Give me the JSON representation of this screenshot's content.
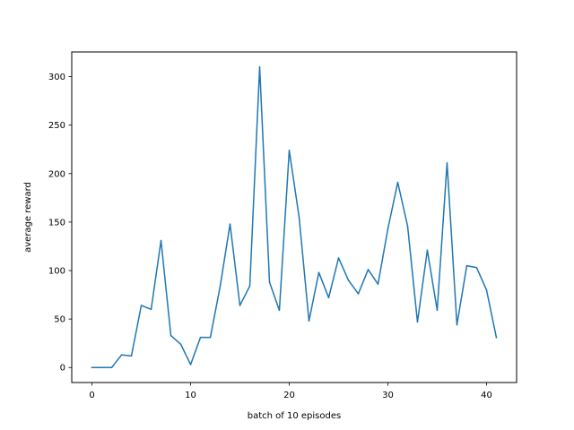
{
  "chart_data": {
    "type": "line",
    "title": "",
    "xlabel": "batch of 10 episodes",
    "ylabel": "average reward",
    "xlim": [
      -2.05,
      43.05
    ],
    "ylim": [
      -15.5,
      325.5
    ],
    "xticks": [
      0,
      10,
      20,
      30,
      40
    ],
    "yticks": [
      0,
      50,
      100,
      150,
      200,
      250,
      300
    ],
    "grid": false,
    "legend": "none",
    "series": [
      {
        "color": "#1f77b4",
        "x": [
          0,
          1,
          2,
          3,
          4,
          5,
          6,
          7,
          8,
          9,
          10,
          11,
          12,
          13,
          14,
          15,
          16,
          17,
          18,
          19,
          20,
          21,
          22,
          23,
          24,
          25,
          26,
          27,
          28,
          29,
          30,
          31,
          32,
          33,
          34,
          35,
          36,
          37,
          38,
          39,
          40,
          41
        ],
        "y": [
          0,
          0,
          0,
          13,
          12,
          64,
          60,
          131,
          33,
          24,
          3,
          31,
          31,
          84,
          148,
          64,
          84,
          310,
          88,
          59,
          224,
          155,
          48,
          98,
          72,
          113,
          90,
          76,
          101,
          86,
          143,
          191,
          146,
          47,
          121,
          59,
          211,
          44,
          105,
          103,
          80,
          31
        ]
      }
    ]
  }
}
